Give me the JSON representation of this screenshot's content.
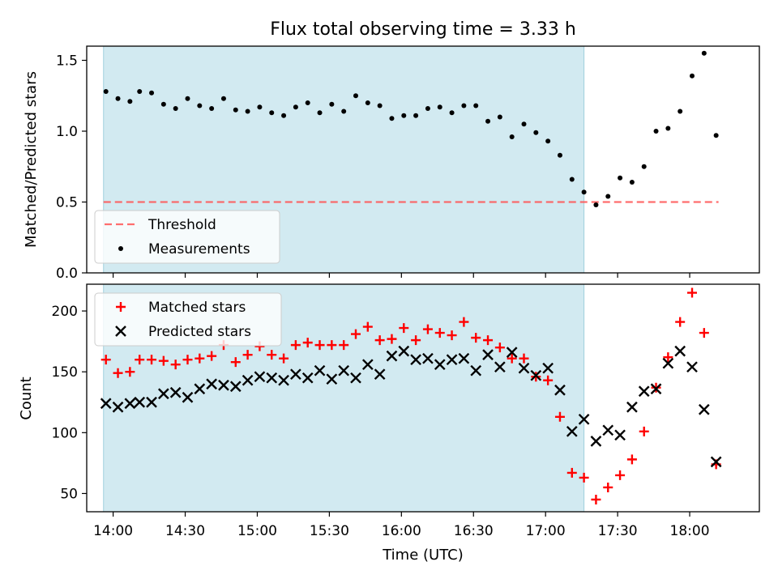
{
  "chart_data": [
    {
      "type": "scatter",
      "panel": "top",
      "title": "Flux total observing time = 3.33 h",
      "xlabel": "",
      "ylabel": "Matched/Predicted stars",
      "ylim": [
        0,
        1.6
      ],
      "yticks": [
        "0.0",
        "0.5",
        "1.0",
        "1.5"
      ],
      "xlim": [
        "13:49",
        "18:29"
      ],
      "xticks": [
        "14:00",
        "14:30",
        "15:00",
        "15:30",
        "16:00",
        "16:30",
        "17:00",
        "17:30",
        "18:00"
      ],
      "shaded_interval": [
        "13:56",
        "17:16"
      ],
      "shade_color": "#add8e6",
      "grid": false,
      "legend_position": "lower-left",
      "legend": [
        "Threshold",
        "Measurements"
      ],
      "threshold": {
        "name": "Threshold",
        "value": 0.5,
        "from": "13:56",
        "to": "18:12",
        "style": "dashed",
        "color": "#ff5555"
      },
      "series": [
        {
          "name": "Measurements",
          "marker": "dot",
          "color": "#000000",
          "x": [
            "13:57",
            "14:02",
            "14:07",
            "14:11",
            "14:16",
            "14:21",
            "14:26",
            "14:31",
            "14:36",
            "14:41",
            "14:46",
            "14:51",
            "14:56",
            "15:01",
            "15:06",
            "15:11",
            "15:16",
            "15:21",
            "15:26",
            "15:31",
            "15:36",
            "15:41",
            "15:46",
            "15:51",
            "15:56",
            "16:01",
            "16:06",
            "16:11",
            "16:16",
            "16:21",
            "16:26",
            "16:31",
            "16:36",
            "16:41",
            "16:46",
            "16:51",
            "16:56",
            "17:01",
            "17:06",
            "17:11",
            "17:16",
            "17:21",
            "17:26",
            "17:31",
            "17:36",
            "17:41",
            "17:46",
            "17:51",
            "17:56",
            "18:01",
            "18:06",
            "18:11"
          ],
          "y": [
            1.28,
            1.23,
            1.21,
            1.28,
            1.27,
            1.19,
            1.16,
            1.23,
            1.18,
            1.16,
            1.23,
            1.15,
            1.14,
            1.17,
            1.13,
            1.11,
            1.17,
            1.2,
            1.13,
            1.19,
            1.14,
            1.25,
            1.2,
            1.18,
            1.09,
            1.11,
            1.11,
            1.16,
            1.17,
            1.13,
            1.18,
            1.18,
            1.07,
            1.1,
            0.96,
            1.05,
            0.99,
            0.93,
            0.83,
            0.66,
            0.57,
            0.48,
            0.54,
            0.67,
            0.64,
            0.75,
            1.0,
            1.02,
            1.14,
            1.39,
            1.55,
            0.97
          ]
        }
      ]
    },
    {
      "type": "scatter",
      "panel": "bottom",
      "xlabel": "Time (UTC)",
      "ylabel": "Count",
      "ylim": [
        35,
        222
      ],
      "yticks": [
        "50",
        "100",
        "150",
        "200"
      ],
      "xlim": [
        "13:49",
        "18:29"
      ],
      "xticks": [
        "14:00",
        "14:30",
        "15:00",
        "15:30",
        "16:00",
        "16:30",
        "17:00",
        "17:30",
        "18:00"
      ],
      "shaded_interval": [
        "13:56",
        "17:16"
      ],
      "shade_color": "#add8e6",
      "grid": false,
      "legend_position": "upper-left",
      "legend": [
        "Matched stars",
        "Predicted stars"
      ],
      "series": [
        {
          "name": "Matched stars",
          "marker": "plus",
          "color": "#ff0000",
          "x": [
            "13:57",
            "14:02",
            "14:07",
            "14:11",
            "14:16",
            "14:21",
            "14:26",
            "14:31",
            "14:36",
            "14:41",
            "14:46",
            "14:51",
            "14:56",
            "15:01",
            "15:06",
            "15:11",
            "15:16",
            "15:21",
            "15:26",
            "15:31",
            "15:36",
            "15:41",
            "15:46",
            "15:51",
            "15:56",
            "16:01",
            "16:06",
            "16:11",
            "16:16",
            "16:21",
            "16:26",
            "16:31",
            "16:36",
            "16:41",
            "16:46",
            "16:51",
            "16:56",
            "17:01",
            "17:06",
            "17:11",
            "17:16",
            "17:21",
            "17:26",
            "17:31",
            "17:36",
            "17:41",
            "17:46",
            "17:51",
            "17:56",
            "18:01",
            "18:06",
            "18:11"
          ],
          "y": [
            160,
            149,
            150,
            160,
            160,
            159,
            156,
            160,
            161,
            163,
            172,
            158,
            164,
            171,
            164,
            161,
            172,
            174,
            172,
            172,
            172,
            181,
            187,
            176,
            177,
            186,
            176,
            185,
            182,
            180,
            191,
            178,
            176,
            170,
            161,
            161,
            146,
            143,
            113,
            67,
            63,
            45,
            55,
            65,
            78,
            101,
            137,
            162,
            191,
            215,
            182,
            74
          ]
        },
        {
          "name": "Predicted stars",
          "marker": "x",
          "color": "#000000",
          "x": [
            "13:57",
            "14:02",
            "14:07",
            "14:11",
            "14:16",
            "14:21",
            "14:26",
            "14:31",
            "14:36",
            "14:41",
            "14:46",
            "14:51",
            "14:56",
            "15:01",
            "15:06",
            "15:11",
            "15:16",
            "15:21",
            "15:26",
            "15:31",
            "15:36",
            "15:41",
            "15:46",
            "15:51",
            "15:56",
            "16:01",
            "16:06",
            "16:11",
            "16:16",
            "16:21",
            "16:26",
            "16:31",
            "16:36",
            "16:41",
            "16:46",
            "16:51",
            "16:56",
            "17:01",
            "17:06",
            "17:11",
            "17:16",
            "17:21",
            "17:26",
            "17:31",
            "17:36",
            "17:41",
            "17:46",
            "17:51",
            "17:56",
            "18:01",
            "18:06",
            "18:11"
          ],
          "y": [
            124,
            121,
            124,
            125,
            125,
            132,
            133,
            129,
            136,
            140,
            139,
            138,
            143,
            146,
            145,
            143,
            148,
            145,
            151,
            144,
            151,
            145,
            156,
            148,
            163,
            167,
            160,
            161,
            156,
            160,
            161,
            151,
            164,
            154,
            166,
            153,
            147,
            153,
            135,
            101,
            111,
            93,
            102,
            98,
            121,
            134,
            136,
            157,
            167,
            154,
            119,
            76
          ]
        }
      ]
    }
  ]
}
